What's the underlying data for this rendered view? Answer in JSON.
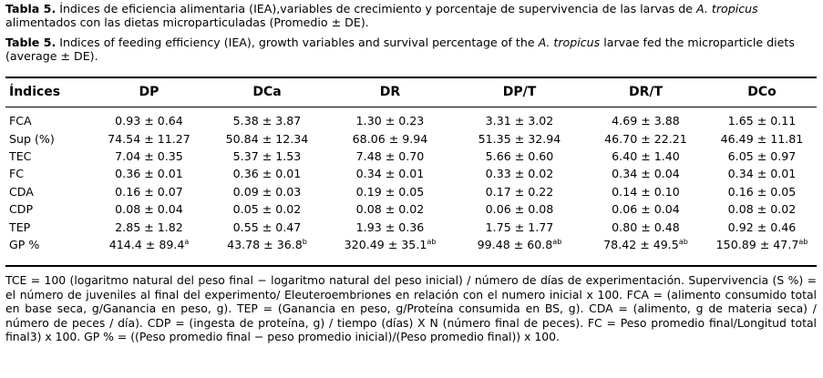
{
  "caption_es": {
    "tag": "Tabla 5.",
    "part1": " Índices de eficiencia alimentaria (IEA),variables de crecimiento y porcentaje de supervivencia de las larvas de ",
    "species": "A. tropicus",
    "part2": " alimentados con las dietas microparticuladas (Promedio ± DE)."
  },
  "caption_en": {
    "tag": "Table 5.",
    "part1": " Indices of feeding efficiency (IEA), growth variables and survival percentage of the ",
    "species": "A. tropicus",
    "part2": " larvae fed the microparticle diets (average ± DE)."
  },
  "table": {
    "headers": [
      "Índices",
      "DP",
      "DCa",
      "DR",
      "DP/T",
      "DR/T",
      "DCo"
    ],
    "rows": [
      {
        "label": "FCA",
        "cells": [
          {
            "v": "0.93 ± 0.64",
            "s": ""
          },
          {
            "v": "5.38 ± 3.87",
            "s": ""
          },
          {
            "v": "1.30 ± 0.23",
            "s": ""
          },
          {
            "v": "3.31 ± 3.02",
            "s": ""
          },
          {
            "v": "4.69 ± 3.88",
            "s": ""
          },
          {
            "v": "1.65 ± 0.11",
            "s": ""
          }
        ]
      },
      {
        "label": "Sup (%)",
        "cells": [
          {
            "v": "74.54 ± 11.27",
            "s": ""
          },
          {
            "v": "50.84 ± 12.34",
            "s": ""
          },
          {
            "v": "68.06 ± 9.94",
            "s": ""
          },
          {
            "v": "51.35 ± 32.94",
            "s": ""
          },
          {
            "v": "46.70 ± 22.21",
            "s": ""
          },
          {
            "v": "46.49 ± 11.81",
            "s": ""
          }
        ]
      },
      {
        "label": "TEC",
        "cells": [
          {
            "v": "7.04 ± 0.35",
            "s": ""
          },
          {
            "v": "5.37 ± 1.53",
            "s": ""
          },
          {
            "v": "7.48 ± 0.70",
            "s": ""
          },
          {
            "v": "5.66 ± 0.60",
            "s": ""
          },
          {
            "v": "6.40 ± 1.40",
            "s": ""
          },
          {
            "v": "6.05 ± 0.97",
            "s": ""
          }
        ]
      },
      {
        "label": "FC",
        "cells": [
          {
            "v": "0.36 ± 0.01",
            "s": ""
          },
          {
            "v": "0.36 ± 0.01",
            "s": ""
          },
          {
            "v": "0.34 ± 0.01",
            "s": ""
          },
          {
            "v": "0.33 ± 0.02",
            "s": ""
          },
          {
            "v": "0.34 ± 0.04",
            "s": ""
          },
          {
            "v": "0.34 ± 0.01",
            "s": ""
          }
        ]
      },
      {
        "label": "CDA",
        "cells": [
          {
            "v": "0.16 ± 0.07",
            "s": ""
          },
          {
            "v": "0.09 ± 0.03",
            "s": ""
          },
          {
            "v": "0.19 ± 0.05",
            "s": ""
          },
          {
            "v": "0.17 ± 0.22",
            "s": ""
          },
          {
            "v": "0.14 ± 0.10",
            "s": ""
          },
          {
            "v": "0.16 ± 0.05",
            "s": ""
          }
        ]
      },
      {
        "label": "CDP",
        "cells": [
          {
            "v": "0.08 ± 0.04",
            "s": ""
          },
          {
            "v": "0.05 ± 0.02",
            "s": ""
          },
          {
            "v": "0.08 ± 0.02",
            "s": ""
          },
          {
            "v": "0.06 ± 0.08",
            "s": ""
          },
          {
            "v": "0.06 ± 0.04",
            "s": ""
          },
          {
            "v": "0.08 ± 0.02",
            "s": ""
          }
        ]
      },
      {
        "label": "TEP",
        "cells": [
          {
            "v": "2.85 ± 1.82",
            "s": ""
          },
          {
            "v": "0.55 ± 0.47",
            "s": ""
          },
          {
            "v": "1.93 ± 0.36",
            "s": ""
          },
          {
            "v": "1.75 ± 1.77",
            "s": ""
          },
          {
            "v": "0.80 ± 0.48",
            "s": ""
          },
          {
            "v": "0.92 ± 0.46",
            "s": ""
          }
        ]
      },
      {
        "label": "GP %",
        "cells": [
          {
            "v": "414.4 ± 89.4",
            "s": "a"
          },
          {
            "v": "43.78 ± 36.8",
            "s": "b"
          },
          {
            "v": "320.49 ± 35.1",
            "s": "ab"
          },
          {
            "v": "99.48 ± 60.8",
            "s": "ab"
          },
          {
            "v": "78.42 ± 49.5",
            "s": "ab"
          },
          {
            "v": "150.89 ± 47.7",
            "s": "ab"
          }
        ]
      }
    ]
  },
  "footnote": "TCE = 100 (logaritmo natural del peso final − logaritmo natural del peso inicial) / número de días de experimentación. Supervivencia (S %) = el número de juveniles al final del experimento/ Eleuteroembriones en relación con el numero inicial x 100. FCA = (alimento consumido total en base seca, g/Ganancia en peso, g). TEP = (Ganancia en peso, g/Proteína consumida en BS, g). CDA = (alimento, g de materia seca) / número de peces / día). CDP = (ingesta de proteína, g) / tiempo (días) X N (número final de peces). FC = Peso promedio final/Longitud total final3) x 100. GP % = ((Peso promedio final − peso promedio inicial)/(Peso promedio final)) x 100."
}
